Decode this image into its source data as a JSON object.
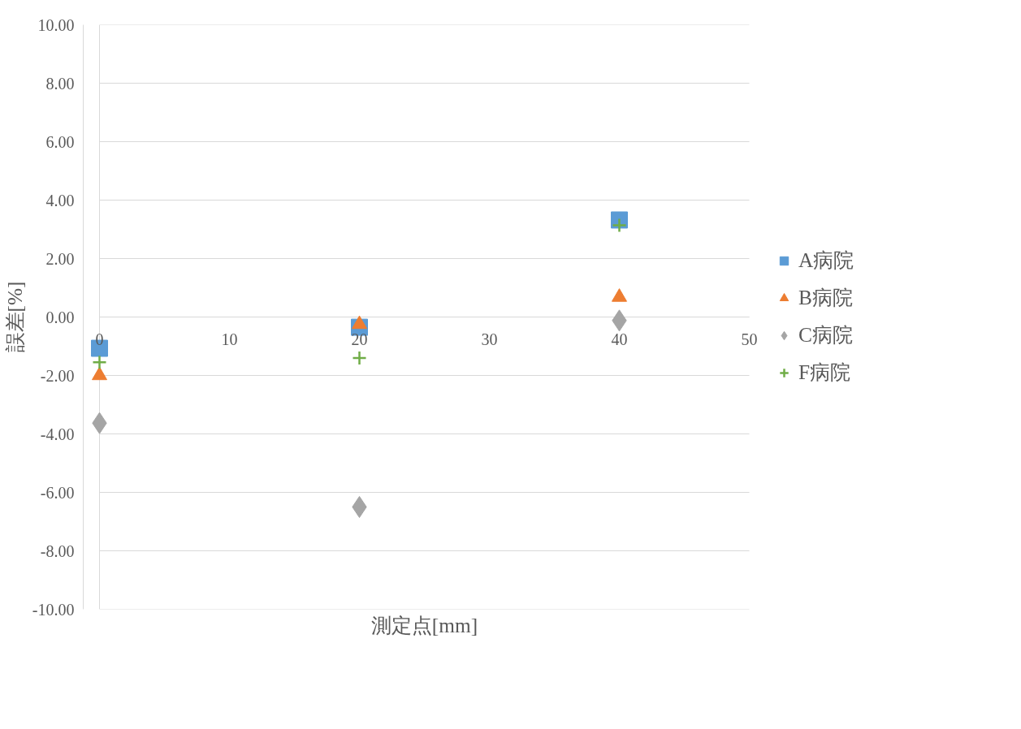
{
  "chart_data": {
    "type": "scatter",
    "xlabel": "測定点[mm]",
    "ylabel": "誤差[%]",
    "x": [
      0,
      20,
      40
    ],
    "series": [
      {
        "name": "A病院",
        "color": "#5b9bd5",
        "marker": "square",
        "values": [
          -1.07,
          -0.35,
          3.32
        ]
      },
      {
        "name": "B病院",
        "color": "#ed7d31",
        "marker": "triangle",
        "values": [
          -2.0,
          -0.25,
          0.68
        ]
      },
      {
        "name": "C病院",
        "color": "#a5a5a5",
        "marker": "diamond",
        "values": [
          -3.63,
          -6.5,
          -0.12
        ]
      },
      {
        "name": "F病院",
        "color": "#70ad47",
        "marker": "cross",
        "values": [
          -1.55,
          -1.4,
          3.14
        ]
      }
    ],
    "xlim": [
      0,
      50
    ],
    "xticks": [
      0,
      10,
      20,
      30,
      40,
      50
    ],
    "ylim": [
      -10,
      10
    ],
    "yticks": [
      {
        "value": -10,
        "label": "-10.00"
      },
      {
        "value": -8,
        "label": "-8.00"
      },
      {
        "value": -6,
        "label": "-6.00"
      },
      {
        "value": -4,
        "label": "-4.00"
      },
      {
        "value": -2,
        "label": "-2.00"
      },
      {
        "value": 0,
        "label": "0.00"
      },
      {
        "value": 2,
        "label": "2.00"
      },
      {
        "value": 4,
        "label": "4.00"
      },
      {
        "value": 6,
        "label": "6.00"
      },
      {
        "value": 8,
        "label": "8.00"
      },
      {
        "value": 10,
        "label": "10.00"
      }
    ],
    "grid": "y",
    "legend": "right"
  }
}
